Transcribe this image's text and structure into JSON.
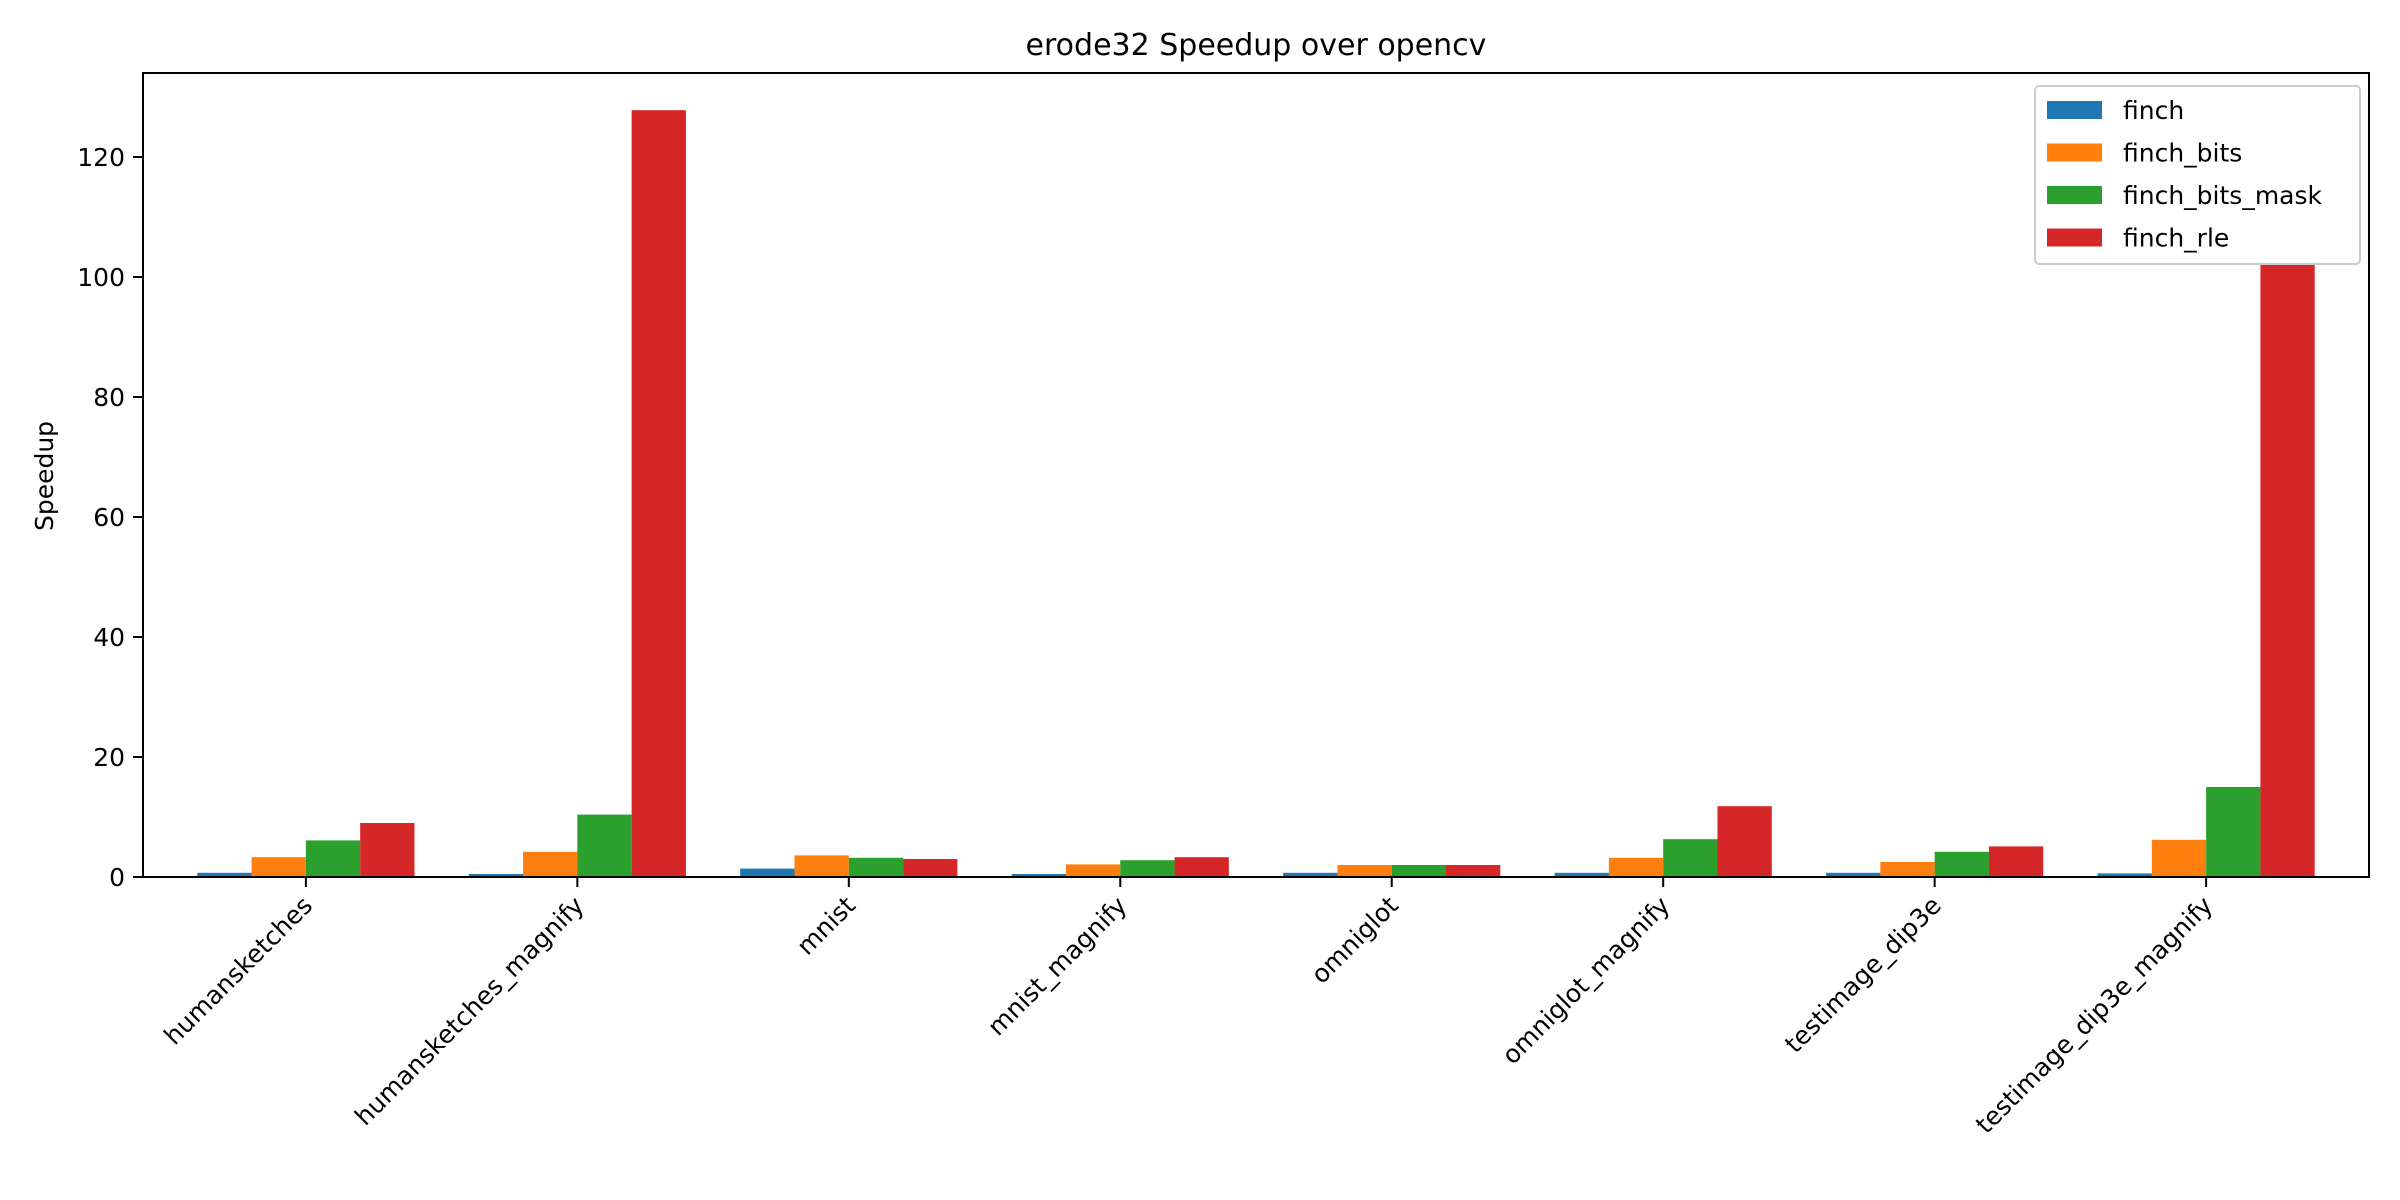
{
  "chart_data": {
    "type": "bar",
    "title": "erode32 Speedup over opencv",
    "xlabel": "",
    "ylabel": "Speedup",
    "ylim": [
      0,
      134
    ],
    "yticks": [
      0,
      20,
      40,
      60,
      80,
      100,
      120
    ],
    "grid": false,
    "legend_position": "top-right",
    "categories": [
      "humansketches",
      "humansketches_magnify",
      "mnist",
      "mnist_magnify",
      "omniglot",
      "omniglot_magnify",
      "testimage_dip3e",
      "testimage_dip3e_magnify"
    ],
    "series": [
      {
        "name": "finch",
        "color": "#1f77b4",
        "values": [
          0.7,
          0.5,
          1.4,
          0.5,
          0.7,
          0.7,
          0.7,
          0.6
        ]
      },
      {
        "name": "finch_bits",
        "color": "#ff7f0e",
        "values": [
          3.3,
          4.2,
          3.6,
          2.1,
          2.0,
          3.2,
          2.5,
          6.2
        ]
      },
      {
        "name": "finch_bits_mask",
        "color": "#2ca02c",
        "values": [
          6.1,
          10.4,
          3.2,
          2.8,
          2.0,
          6.3,
          4.2,
          15.0
        ]
      },
      {
        "name": "finch_rle",
        "color": "#d62728",
        "values": [
          9.0,
          127.8,
          3.0,
          3.3,
          2.0,
          11.8,
          5.1,
          102.0
        ]
      }
    ]
  }
}
